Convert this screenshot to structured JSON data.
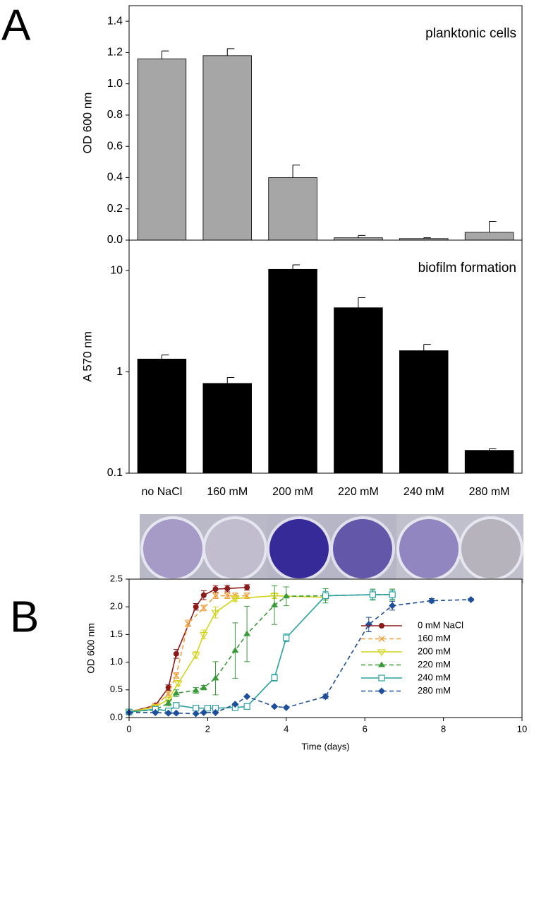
{
  "panel_labels": [
    "A",
    "B"
  ],
  "chart_data": [
    {
      "type": "bar",
      "annotation": "planktonic cells",
      "ylabel": "OD 600 nm",
      "color": "#a6a6a6",
      "values": [
        1.16,
        1.18,
        0.4,
        0.015,
        0.01,
        0.05
      ],
      "errors": [
        0.05,
        0.045,
        0.08,
        0.015,
        0.005,
        0.07
      ],
      "ylim": [
        0,
        1.5
      ],
      "yticks": [
        {
          "value": 0,
          "label": "0.0"
        },
        0.2,
        0.4,
        0.6,
        0.8,
        {
          "value": 1,
          "label": "1.0"
        },
        1.2,
        1.4
      ]
    },
    {
      "type": "bar",
      "annotation": "biofilm  formation",
      "ylabel": "A 570 nm",
      "color": "#000000",
      "log_scale": true,
      "categories": [
        "no NaCl",
        "160 mM",
        "200 mM",
        "220 mM",
        "240 mM",
        "280 mM"
      ],
      "values": [
        1.34,
        0.77,
        10.3,
        4.3,
        1.62,
        0.168
      ],
      "errors": [
        0.13,
        0.11,
        1.1,
        1.1,
        0.25,
        0.006
      ],
      "ylim": [
        0.1,
        20
      ],
      "yticks": [
        0.1,
        1,
        10
      ]
    },
    {
      "type": "line",
      "xlabel": "Time (days)",
      "ylabel": "OD 600 nm",
      "legend": "center-right",
      "xlim": [
        0,
        10
      ],
      "xticks": [
        0,
        2,
        4,
        6,
        8,
        10
      ],
      "ylim": [
        0,
        2.5
      ],
      "yticks": [
        {
          "value": 0,
          "label": "0.0"
        },
        0.5,
        {
          "value": 1,
          "label": "1.0"
        },
        1.5,
        {
          "value": 2,
          "label": "2.0"
        },
        2.5
      ],
      "series": [
        {
          "name": "0 mM NaCl",
          "color": "#8b1a1a",
          "dashed": false,
          "marker": "circle",
          "x": [
            0,
            0.67,
            1.0,
            1.2,
            1.7,
            1.9,
            2.2,
            2.5,
            3.0
          ],
          "values": [
            0.1,
            0.22,
            0.54,
            1.15,
            2.0,
            2.21,
            2.32,
            2.33,
            2.35
          ],
          "errors": [
            0.02,
            0.03,
            0.05,
            0.08,
            0.06,
            0.08,
            0.06,
            0.06,
            0.05
          ]
        },
        {
          "name": "160 mM",
          "color": "#f0a040",
          "dashed": true,
          "marker": "x",
          "x": [
            0,
            0.67,
            1.0,
            1.2,
            1.5,
            1.9,
            2.2,
            2.5,
            2.7,
            3.0
          ],
          "values": [
            0.1,
            0.21,
            0.43,
            0.76,
            1.7,
            1.98,
            2.2,
            2.2,
            2.2,
            2.2
          ],
          "errors": [
            0.02,
            0.03,
            0.04,
            0.05,
            0.06,
            0.05,
            0.05,
            0.05,
            0.05,
            0.05
          ]
        },
        {
          "name": "200 mM",
          "color": "#d4d41e",
          "dashed": false,
          "marker": "triangle-down",
          "x": [
            0,
            0.67,
            1.0,
            1.25,
            1.7,
            1.9,
            2.2,
            2.7,
            3.7,
            5.0
          ],
          "values": [
            0.1,
            0.19,
            0.33,
            0.62,
            1.13,
            1.5,
            1.9,
            2.15,
            2.2,
            2.17
          ],
          "errors": [
            0.02,
            0.03,
            0.04,
            0.05,
            0.06,
            0.08,
            0.1,
            0.05,
            0.05,
            0.05
          ]
        },
        {
          "name": "220 mM",
          "color": "#3a9a3a",
          "dashed": true,
          "marker": "triangle-up",
          "x": [
            0,
            0.67,
            1.0,
            1.2,
            1.7,
            1.9,
            2.2,
            2.7,
            3.0,
            3.7,
            4.0,
            5.0,
            6.2,
            6.7
          ],
          "values": [
            0.1,
            0.14,
            0.26,
            0.44,
            0.49,
            0.54,
            0.71,
            1.21,
            1.51,
            2.03,
            2.19,
            2.2,
            2.22,
            2.22
          ],
          "errors": [
            0.02,
            0.03,
            0.05,
            0.06,
            0.05,
            0.04,
            0.3,
            0.5,
            0.5,
            0.35,
            0.17,
            0.13,
            0.1,
            0.1
          ]
        },
        {
          "name": "240 mM",
          "color": "#2aa0a0",
          "dashed": false,
          "marker": "square-open",
          "x": [
            0,
            0.67,
            1.0,
            1.2,
            1.7,
            2.0,
            2.2,
            2.7,
            3.0,
            3.7,
            4.0,
            5.0,
            6.2,
            6.7
          ],
          "values": [
            0.1,
            0.15,
            0.12,
            0.22,
            0.17,
            0.17,
            0.17,
            0.18,
            0.2,
            0.72,
            1.44,
            2.2,
            2.22,
            2.22
          ],
          "errors": [
            0.02,
            0.02,
            0.02,
            0.04,
            0.02,
            0.02,
            0.02,
            0.02,
            0.02,
            0.06,
            0.07,
            0.08,
            0.08,
            0.08
          ]
        },
        {
          "name": "280 mM",
          "color": "#1f4f9a",
          "dashed": true,
          "marker": "diamond",
          "x": [
            0,
            0.67,
            1.0,
            1.2,
            1.7,
            1.9,
            2.2,
            2.7,
            3.0,
            3.7,
            4.0,
            5.0,
            6.1,
            6.7,
            7.7,
            8.7
          ],
          "values": [
            0.09,
            0.09,
            0.08,
            0.08,
            0.07,
            0.09,
            0.09,
            0.24,
            0.38,
            0.2,
            0.18,
            0.38,
            1.68,
            2.02,
            2.11,
            2.13
          ],
          "errors": [
            0.01,
            0.01,
            0.01,
            0.01,
            0.01,
            0.01,
            0.01,
            0.01,
            0.01,
            0.01,
            0.01,
            0.04,
            0.13,
            0.08,
            0.04,
            0.02
          ]
        }
      ]
    }
  ]
}
